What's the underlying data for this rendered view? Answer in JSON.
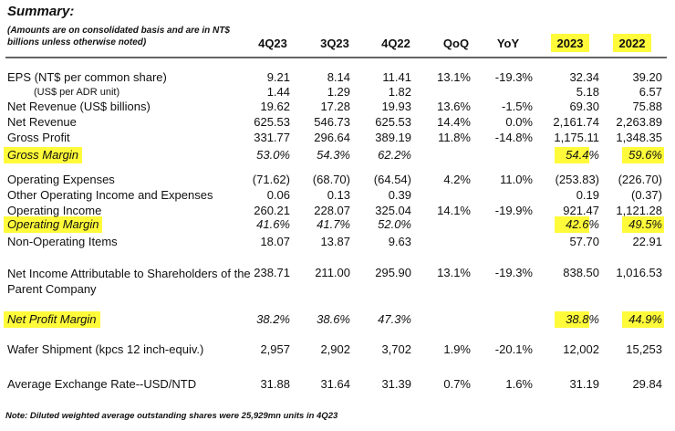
{
  "title": "Summary:",
  "subnote": "(Amounts are on consolidated basis and are in NT$ billions unless otherwise noted)",
  "headers": [
    "4Q23",
    "3Q23",
    "4Q22",
    "QoQ",
    "YoY",
    "2023",
    "2022"
  ],
  "rows": {
    "eps_ntd": {
      "label": "EPS (NT$ per common share)",
      "values": [
        "9.21",
        "8.14",
        "11.41",
        "13.1%",
        "-19.3%",
        "32.34",
        "39.20"
      ]
    },
    "eps_usd": {
      "label": "(US$ per ADR unit)",
      "values": [
        "1.44",
        "1.29",
        "1.82",
        "",
        "",
        "5.18",
        "6.57"
      ]
    },
    "net_rev_usd": {
      "label": "Net Revenue (US$ billions)",
      "values": [
        "19.62",
        "17.28",
        "19.93",
        "13.6%",
        "-1.5%",
        "69.30",
        "75.88"
      ]
    },
    "net_rev": {
      "label": "Net Revenue",
      "values": [
        "625.53",
        "546.73",
        "625.53",
        "14.4%",
        "0.0%",
        "2,161.74",
        "2,263.89"
      ]
    },
    "gross_profit": {
      "label": "Gross Profit",
      "values": [
        "331.77",
        "296.64",
        "389.19",
        "11.8%",
        "-14.8%",
        "1,175.11",
        "1,348.35"
      ]
    },
    "gross_margin": {
      "label": "Gross Margin",
      "values": [
        "53.0%",
        "54.3%",
        "62.2%",
        "",
        "",
        "54.4%",
        "59.6%"
      ]
    },
    "opex": {
      "label": "Operating Expenses",
      "values": [
        "(71.62)",
        "(68.70)",
        "(64.54)",
        "4.2%",
        "11.0%",
        "(253.83)",
        "(226.70)"
      ]
    },
    "other_op": {
      "label": "Other Operating Income and Expenses",
      "values": [
        "0.06",
        "0.13",
        "0.39",
        "",
        "",
        "0.19",
        "(0.37)"
      ]
    },
    "op_income": {
      "label": "Operating Income",
      "values": [
        "260.21",
        "228.07",
        "325.04",
        "14.1%",
        "-19.9%",
        "921.47",
        "1,121.28"
      ]
    },
    "op_margin": {
      "label": "Operating Margin",
      "values": [
        "41.6%",
        "41.7%",
        "52.0%",
        "",
        "",
        "42.6%",
        "49.5%"
      ]
    },
    "non_op": {
      "label": "Non-Operating Items",
      "values": [
        "18.07",
        "13.87",
        "9.63",
        "",
        "",
        "57.70",
        "22.91"
      ]
    },
    "net_income": {
      "label": "Net Income Attributable to Shareholders of the Parent Company",
      "values": [
        "238.71",
        "211.00",
        "295.90",
        "13.1%",
        "-19.3%",
        "838.50",
        "1,016.53"
      ]
    },
    "net_margin": {
      "label": "Net Profit Margin",
      "values": [
        "38.2%",
        "38.6%",
        "47.3%",
        "",
        "",
        "38.8%",
        "44.9%"
      ]
    },
    "wafer": {
      "label": "Wafer Shipment (kpcs 12 inch-equiv.)",
      "values": [
        "2,957",
        "2,902",
        "3,702",
        "1.9%",
        "-20.1%",
        "12,002",
        "15,253"
      ]
    },
    "fx": {
      "label": "Average Exchange Rate--USD/NTD",
      "values": [
        "31.88",
        "31.64",
        "31.39",
        "0.7%",
        "1.6%",
        "31.19",
        "29.84"
      ]
    }
  },
  "footnote": "Note: Diluted weighted average outstanding shares were 25,929mn units in 4Q23",
  "colors": {
    "highlight": "#fffb3a",
    "rule": "#666666"
  }
}
